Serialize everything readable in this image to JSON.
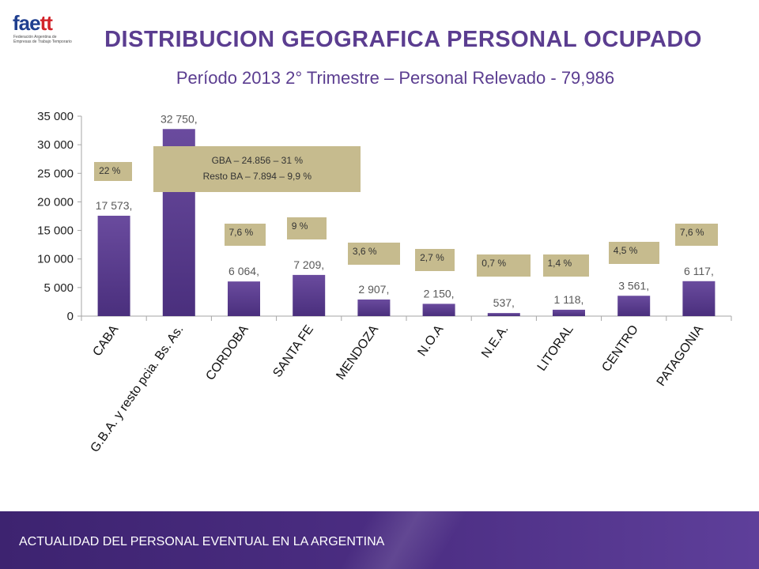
{
  "logo": {
    "word_main": "fae",
    "word_accent": "tt",
    "subtitle": "Federación Argentina de Empresas de Trabajo Temporario"
  },
  "title": "DISTRIBUCION GEOGRAFICA PERSONAL OCUPADO",
  "subtitle": "Período 2013  2° Trimestre – Personal Relevado - 79,986",
  "footer": {
    "text": "ACTUALIDAD DEL PERSONAL EVENTUAL EN LA ARGENTINA"
  },
  "colors": {
    "bar": "#6a4b9e",
    "bar_dark": "#4a2f7d",
    "annotation": "#c6bb8e",
    "title": "#5b3d90",
    "footer": "#4b2d82"
  },
  "chart_data": {
    "type": "bar",
    "categories": [
      "CABA",
      "G.B.A. y resto pcia. Bs. As.",
      "CORDOBA",
      "SANTA FE",
      "MENDOZA",
      "N.O.A",
      "N.E.A.",
      "LITORAL",
      "CENTRO",
      "PATAGONIA"
    ],
    "values": [
      17573,
      32750,
      6064,
      7209,
      2907,
      2150,
      537,
      1118,
      3561,
      6117
    ],
    "data_labels": [
      "17 573,",
      "32 750,",
      "6 064,",
      "7 209,",
      "2 907,",
      "2 150,",
      "537,",
      "1 118,",
      "3 561,",
      "6 117,"
    ],
    "y_ticks": [
      0,
      5000,
      10000,
      15000,
      20000,
      25000,
      30000,
      35000
    ],
    "y_tick_labels": [
      "0",
      "5 000",
      "10 000",
      "15 000",
      "20 000",
      "25 000",
      "30 000",
      "35 000"
    ],
    "ylim": [
      0,
      35000
    ],
    "grid": false,
    "legend": "none",
    "annotations": [
      {
        "category": "CABA",
        "text": "22 %"
      },
      {
        "category": "G.B.A. y resto pcia. Bs. As.",
        "lines": [
          "GBA – 24.856 – 31 %",
          "Resto BA – 7.894 – 9,9 %"
        ]
      },
      {
        "category": "CORDOBA",
        "text": "7,6 %"
      },
      {
        "category": "SANTA FE",
        "text": "9 %"
      },
      {
        "category": "MENDOZA",
        "text": "3,6 %"
      },
      {
        "category": "N.O.A",
        "text": "2,7 %"
      },
      {
        "category": "N.E.A.",
        "text": "0,7 %"
      },
      {
        "category": "LITORAL",
        "text": "1,4 %"
      },
      {
        "category": "CENTRO",
        "text": "4,5 %"
      },
      {
        "category": "PATAGONIA",
        "text": "7,6 %"
      }
    ]
  }
}
